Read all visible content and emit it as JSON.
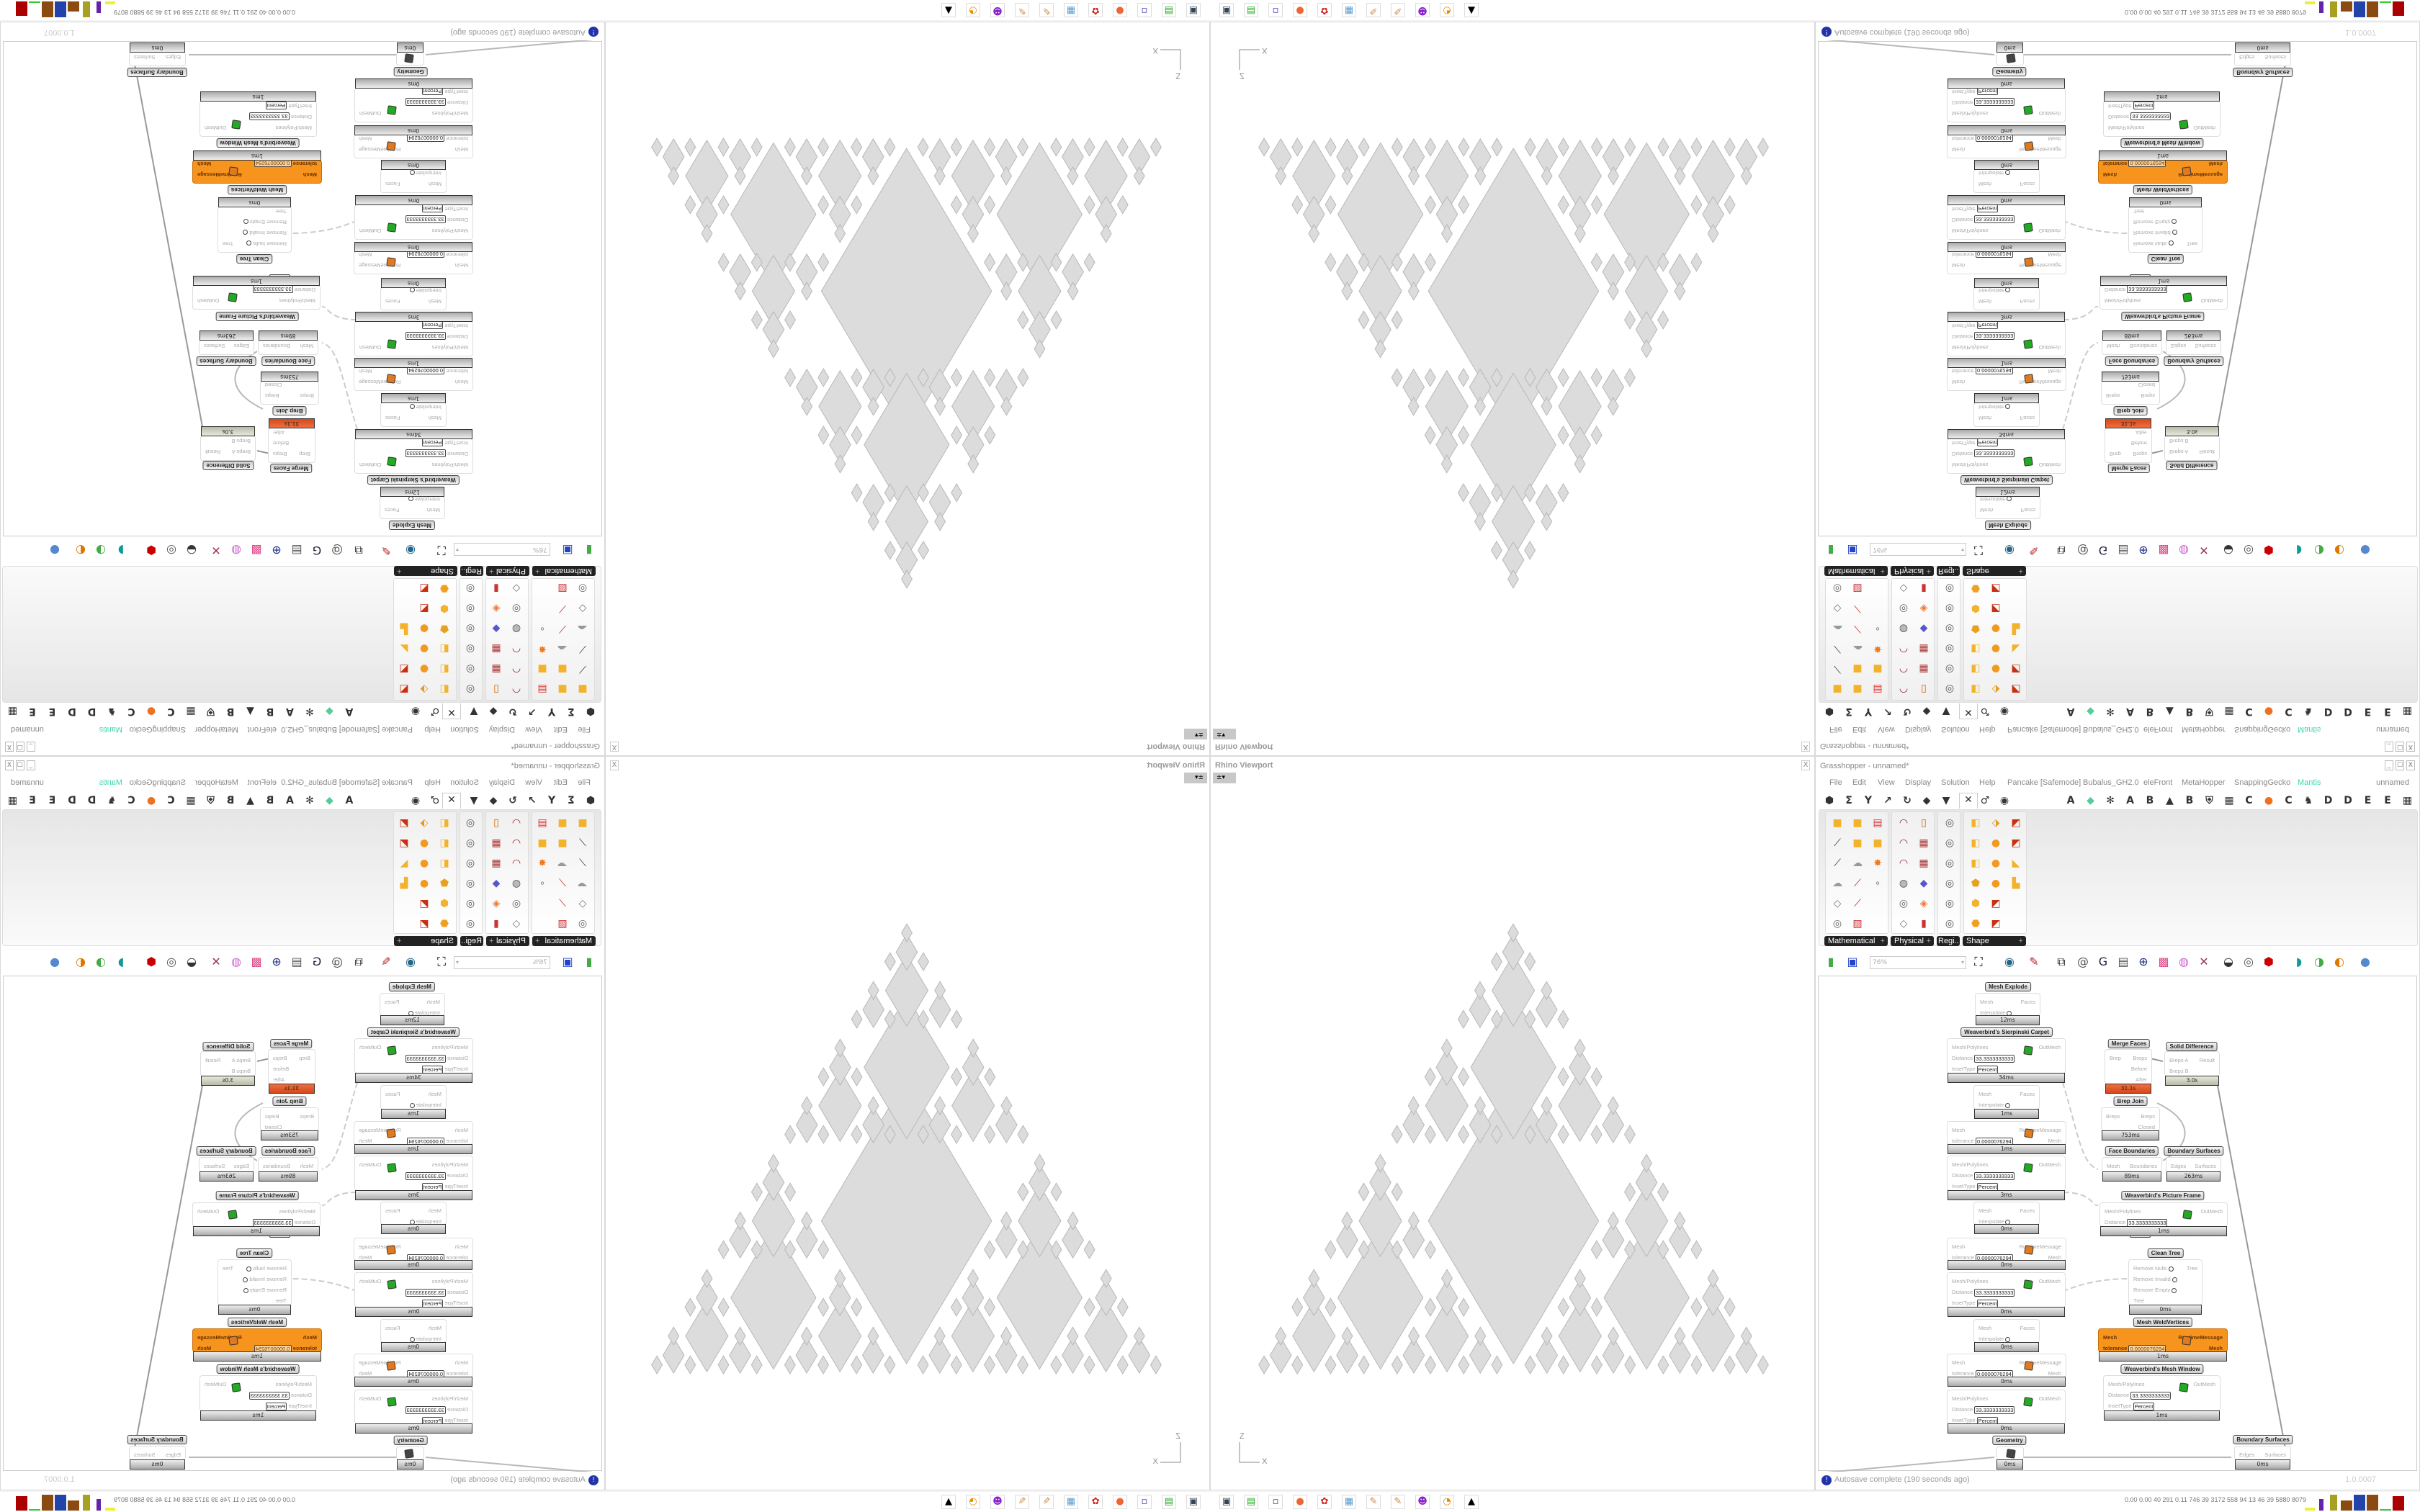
{
  "rhino": {
    "title": "Rhino Viewport",
    "close_label": "X",
    "view_button": "±▾",
    "axes": {
      "vertical": "Z",
      "horizontal": "X"
    },
    "geometry_fill": "#dcdcdc",
    "geometry_stroke": "#b8b8b8"
  },
  "grasshopper": {
    "title": "Grasshopper - unnamed*",
    "window_buttons": [
      "_",
      "☐",
      "X"
    ],
    "menu": [
      "File",
      "Edit",
      "View",
      "Display",
      "Solution",
      "Help",
      "Pancake [Safemode]",
      "Bubalus_GH2.0",
      "eleFront",
      "MetaHopper",
      "SnappingGecko",
      "Mantis"
    ],
    "menu_accent": "#3ad6b0",
    "document_name": "unnamed",
    "tabs_left": [
      "params-icon",
      "maths-icon",
      "sets-icon",
      "vector-icon",
      "curve-icon",
      "surface-icon",
      "mesh-icon",
      "intersect-icon",
      "transform-icon",
      "display-icon"
    ],
    "active_tab": 7,
    "tabs_right": [
      "A",
      "leaf-icon",
      "snowflake-icon",
      "A",
      "B",
      "mountain-icon",
      "B",
      "shield-icon",
      "grid-icon",
      "C",
      "orange-circle-icon",
      "C",
      "bird-icon",
      "D",
      "D",
      "E",
      "E",
      "grid-icon"
    ],
    "palette_groups": [
      {
        "label": "Mathematical",
        "columns": 3,
        "icons": [
          "solid-icon",
          "solid-icon",
          "panel-icon",
          "line-icon",
          "solid-icon",
          "solid-icon",
          "line-icon",
          "cloud-icon",
          "burst-icon",
          "cloud-icon",
          "slash-icon",
          "points-icon",
          "plane-icon",
          "slash-icon",
          "",
          "ring-icon",
          "hatch-icon",
          ""
        ]
      },
      {
        "label": "Physical",
        "columns": 2,
        "icons": [
          "curve-icon",
          "frame-icon",
          "curve-icon",
          "grid-icon",
          "curve-icon",
          "grid-icon",
          "cylinder-icon",
          "boxes-icon",
          "ring-icon",
          "diamonds-icon",
          "plane-icon",
          "bar-icon"
        ]
      },
      {
        "label": "Regi..",
        "columns": 1,
        "icons": [
          "region-icon",
          "region-icon",
          "region-icon",
          "region-icon",
          "region-icon",
          "region-icon"
        ]
      },
      {
        "label": "Shape",
        "columns": 3,
        "icons": [
          "union-icon",
          "split-icon",
          "corner-icon",
          "union-icon",
          "blob-icon",
          "corner-icon",
          "union-icon",
          "blob-icon",
          "fold-icon",
          "box-icon",
          "blob-icon",
          "bracket-icon",
          "gem-icon",
          "corner-icon",
          "",
          "slab-icon",
          "corner-icon",
          ""
        ]
      }
    ],
    "toolbar": {
      "zoom_value": "76%",
      "icons": [
        "new-file-icon",
        "save-icon",
        "zoom-extents-icon",
        "eye-icon",
        "sketch-icon",
        "plugin-icon",
        "email-icon",
        "gha-icon",
        "window-icon",
        "search-icon",
        "box-icon",
        "bulb-icon",
        "wires-icon",
        "ghost-icon",
        "ring-icon",
        "red-gem-icon",
        "teal-icon",
        "green-icon",
        "sphere-icon",
        "blue-sphere-icon"
      ]
    },
    "components": [
      {
        "label": "Mesh Explode",
        "icon": "mesh-explode-icon",
        "inputs": [
          {
            "name": "Mesh"
          },
          {
            "name": "Interpolate",
            "toggle": true
          }
        ],
        "outputs": [
          "Faces"
        ],
        "time": "12ms"
      },
      {
        "label": "Weaverbird's Sierpinski Carpet",
        "icon": "wb-carpet-icon",
        "inputs": [
          {
            "name": "Mesh/Polylines"
          },
          {
            "name": "Distance",
            "value": "33.3333333333"
          },
          {
            "name": "InsetType",
            "value": "Percent"
          }
        ],
        "outputs": [
          "OutMesh"
        ],
        "time": "34ms"
      },
      {
        "label": "",
        "icon": "mesh-explode-icon",
        "inputs": [
          {
            "name": "Mesh"
          },
          {
            "name": "Interpolate",
            "toggle": true
          }
        ],
        "outputs": [
          "Faces"
        ],
        "time": "1ms"
      },
      {
        "label": "",
        "icon": "weld-icon",
        "inputs": [
          {
            "name": "Mesh"
          },
          {
            "name": "tolerance",
            "value": "0.0000076294"
          }
        ],
        "outputs": [
          "RuntimeMessage",
          "Mesh"
        ],
        "time": "1ms"
      },
      {
        "label": "",
        "icon": "wb-carpet-icon",
        "inputs": [
          {
            "name": "Mesh/Polylines"
          },
          {
            "name": "Distance",
            "value": "33.3333333333"
          },
          {
            "name": "InsetType",
            "value": "Percent"
          }
        ],
        "outputs": [
          "OutMesh"
        ],
        "time": "3ms"
      },
      {
        "label": "",
        "icon": "mesh-explode-icon",
        "inputs": [
          {
            "name": "Mesh"
          },
          {
            "name": "Interpolate",
            "toggle": true
          }
        ],
        "outputs": [
          "Faces"
        ],
        "time": "0ms"
      },
      {
        "label": "",
        "icon": "weld-icon",
        "inputs": [
          {
            "name": "Mesh"
          },
          {
            "name": "tolerance",
            "value": "0.0000076294"
          }
        ],
        "outputs": [
          "RuntimeMessage",
          "Mesh"
        ],
        "time": "0ms"
      },
      {
        "label": "",
        "icon": "wb-carpet-icon",
        "inputs": [
          {
            "name": "Mesh/Polylines"
          },
          {
            "name": "Distance",
            "value": "33.3333333333"
          },
          {
            "name": "InsetType",
            "value": "Percent"
          }
        ],
        "outputs": [
          "OutMesh"
        ],
        "time": "0ms"
      },
      {
        "label": "",
        "icon": "mesh-explode-icon",
        "inputs": [
          {
            "name": "Mesh"
          },
          {
            "name": "Interpolate",
            "toggle": true
          }
        ],
        "outputs": [
          "Faces"
        ],
        "time": "0ms"
      },
      {
        "label": "",
        "icon": "weld-icon",
        "inputs": [
          {
            "name": "Mesh"
          },
          {
            "name": "tolerance",
            "value": "0.0000076294"
          }
        ],
        "outputs": [
          "RuntimeMessage",
          "Mesh"
        ],
        "time": "0ms"
      },
      {
        "label": "",
        "icon": "wb-carpet-icon",
        "inputs": [
          {
            "name": "Mesh/Polylines"
          },
          {
            "name": "Distance",
            "value": "33.3333333333"
          },
          {
            "name": "InsetType",
            "value": "Percent"
          }
        ],
        "outputs": [
          "OutMesh"
        ],
        "time": "0ms"
      },
      {
        "label": "Geometry",
        "icon": "geometry-icon",
        "inputs": [],
        "outputs": [],
        "time": "0ms"
      },
      {
        "label": "Merge Faces",
        "icon": "merge-faces-icon",
        "inputs": [
          {
            "name": "Brep"
          }
        ],
        "outputs": [
          "Breps",
          "Before",
          "After"
        ],
        "time": "31.1s",
        "state": "red"
      },
      {
        "label": "Brep Join",
        "icon": "brep-join-icon",
        "inputs": [
          {
            "name": "Breps"
          }
        ],
        "outputs": [
          "Breps",
          "Closed"
        ],
        "time": "753ms"
      },
      {
        "label": "Face Boundaries",
        "icon": "face-boundaries-icon",
        "inputs": [
          {
            "name": "Mesh"
          }
        ],
        "outputs": [
          "Boundaries"
        ],
        "time": "89ms"
      },
      {
        "label": "Solid Difference",
        "icon": "solid-difference-icon",
        "inputs": [
          {
            "name": "Breps A"
          },
          {
            "name": "Breps B"
          }
        ],
        "outputs": [
          "Result"
        ],
        "time": "3.0s",
        "state": "olive"
      },
      {
        "label": "Boundary Surfaces",
        "icon": "boundary-surfaces-icon",
        "inputs": [
          {
            "name": "Edges"
          }
        ],
        "outputs": [
          "Surfaces"
        ],
        "time": "263ms"
      },
      {
        "label": "Weaverbird's Picture Frame",
        "icon": "wb-frame-icon",
        "inputs": [
          {
            "name": "Mesh/Polylines"
          },
          {
            "name": "Distance",
            "value": "33.3333333333"
          },
          {
            "name": "InsetType",
            "value": "Percent"
          }
        ],
        "outputs": [
          "OutMesh"
        ],
        "time": "1ms"
      },
      {
        "label": "Clean Tree",
        "icon": "clean-tree-icon",
        "inputs": [
          {
            "name": "Remove Nulls",
            "toggle": true
          },
          {
            "name": "Remove Invalid",
            "toggle": true
          },
          {
            "name": "Remove Empty",
            "toggle": true
          },
          {
            "name": "Tree"
          }
        ],
        "outputs": [
          "Tree"
        ],
        "time": "0ms"
      },
      {
        "label": "Mesh WeldVertices",
        "icon": "weld-icon",
        "inputs": [
          {
            "name": "Mesh"
          },
          {
            "name": "tolerance",
            "value": "0.0000076294"
          }
        ],
        "outputs": [
          "RuntimeMessage",
          "Mesh"
        ],
        "time": "1ms",
        "state": "orange"
      },
      {
        "label": "Weaverbird's Mesh Window",
        "icon": "wb-window-icon",
        "inputs": [
          {
            "name": "Mesh/Polylines"
          },
          {
            "name": "Distance",
            "value": "33.3333333333"
          },
          {
            "name": "InsetType",
            "value": "Percent"
          }
        ],
        "outputs": [
          "OutMesh"
        ],
        "time": "1ms"
      },
      {
        "label": "Boundary Surfaces",
        "icon": "boundary-surfaces-icon",
        "inputs": [
          {
            "name": "Edges"
          }
        ],
        "outputs": [
          "Surfaces"
        ],
        "time": "0ms"
      }
    ],
    "status": {
      "message": "Autosave complete (190 seconds ago)",
      "version": "1.0.0007"
    }
  },
  "taskbar": {
    "apps": [
      "rhino-monitor-icon",
      "terminal-icon",
      "floppy-64-icon",
      "firefox-icon",
      "red-app-icon",
      "calculator-icon",
      "paint-icon",
      "paint-icon",
      "discord-icon",
      "blender-icon",
      "inkscape-icon"
    ],
    "perf_readout": "0.00 0.00  40  291  0.11  746  39  3172  558  94  13  46  39  5880 8079"
  }
}
